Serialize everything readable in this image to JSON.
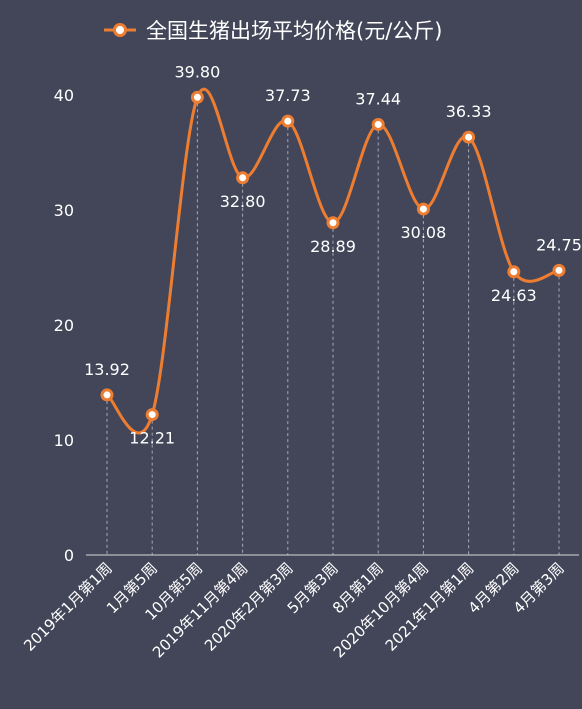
{
  "chart_data": {
    "type": "line",
    "title": "全国生猪出场平均价格(元/公斤)",
    "legend": {
      "position": "top-center",
      "label": "全国生猪出场平均价格(元/公斤)"
    },
    "categories": [
      "2019年1月第1周",
      "1月第5周",
      "10月第5周",
      "2019年11月第4周",
      "2020年2月第3周",
      "5月第3周",
      "8月第1周",
      "2020年10月第4周",
      "2021年1月第1周",
      "4月第2周",
      "4月第3周"
    ],
    "series": [
      {
        "name": "全国生猪出场平均价格(元/公斤)",
        "values": [
          13.92,
          12.21,
          39.8,
          32.8,
          37.73,
          28.89,
          37.44,
          30.08,
          36.33,
          24.63,
          24.75
        ],
        "data_labels": [
          "13.92",
          "12.21",
          "39.80",
          "32.80",
          "37.73",
          "28.89",
          "37.44",
          "30.08",
          "36.33",
          "24.63",
          "24.75"
        ]
      }
    ],
    "y_ticks": [
      "0",
      "10",
      "20",
      "30",
      "40"
    ],
    "ylim": [
      0,
      40
    ],
    "smooth": true,
    "grid": false,
    "colors": {
      "background": "#434659",
      "line": "#ED7D31",
      "text": "#FFFFFF",
      "axis": "#D9D9D9",
      "dropline": "#A6A8B5"
    }
  }
}
